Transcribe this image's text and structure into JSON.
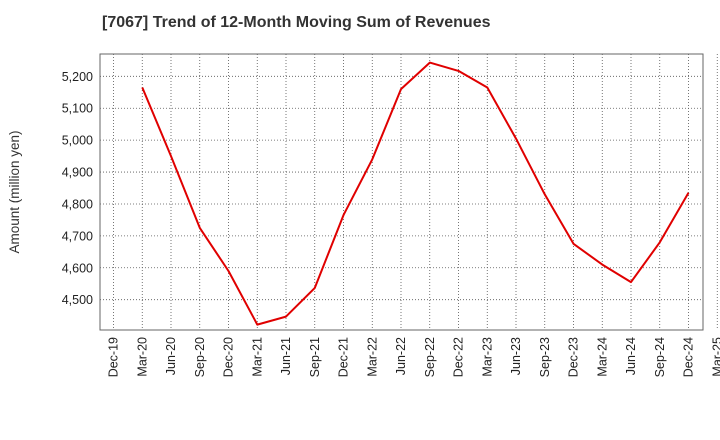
{
  "chart_data": {
    "type": "line",
    "title": "[7067]  Trend of 12-Month Moving Sum of Revenues",
    "xlabel": "",
    "ylabel": "Amount (million yen)",
    "categories": [
      "Dec-19",
      "Mar-20",
      "Jun-20",
      "Sep-20",
      "Dec-20",
      "Mar-21",
      "Jun-21",
      "Sep-21",
      "Dec-21",
      "Mar-22",
      "Jun-22",
      "Sep-22",
      "Dec-22",
      "Mar-23",
      "Jun-23",
      "Sep-23",
      "Dec-23",
      "Mar-24",
      "Jun-24",
      "Sep-24",
      "Dec-24",
      "Mar-25"
    ],
    "yticks": [
      "4,500",
      "4,600",
      "4,700",
      "4,800",
      "4,900",
      "5,000",
      "5,100",
      "5,200"
    ],
    "ylim": [
      4405,
      5270
    ],
    "grid": true,
    "series": [
      {
        "color": "#e00000",
        "values": [
          null,
          5165,
          4950,
          4725,
          4590,
          4422,
          4447,
          4537,
          4765,
          4940,
          5160,
          5243,
          5217,
          5165,
          5005,
          4830,
          4675,
          4610,
          4555,
          4680,
          4835,
          null
        ]
      }
    ]
  }
}
